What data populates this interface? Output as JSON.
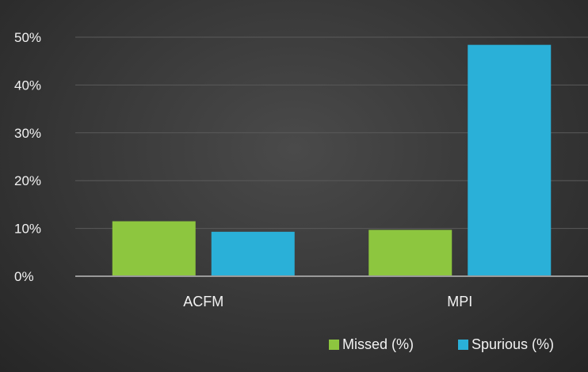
{
  "chart_data": {
    "type": "bar",
    "categories": [
      "ACFM",
      "MPI"
    ],
    "series": [
      {
        "name": "Missed (%)",
        "values": [
          11.5,
          9.7
        ],
        "color": "#8dc63f"
      },
      {
        "name": "Spurious (%)",
        "values": [
          9.3,
          48.4
        ],
        "color": "#2ab0d8"
      }
    ],
    "yticks": [
      "0%",
      "10%",
      "20%",
      "30%",
      "40%",
      "50%"
    ],
    "ylim": [
      0,
      50
    ],
    "grid": true,
    "legend_position": "bottom-right"
  }
}
